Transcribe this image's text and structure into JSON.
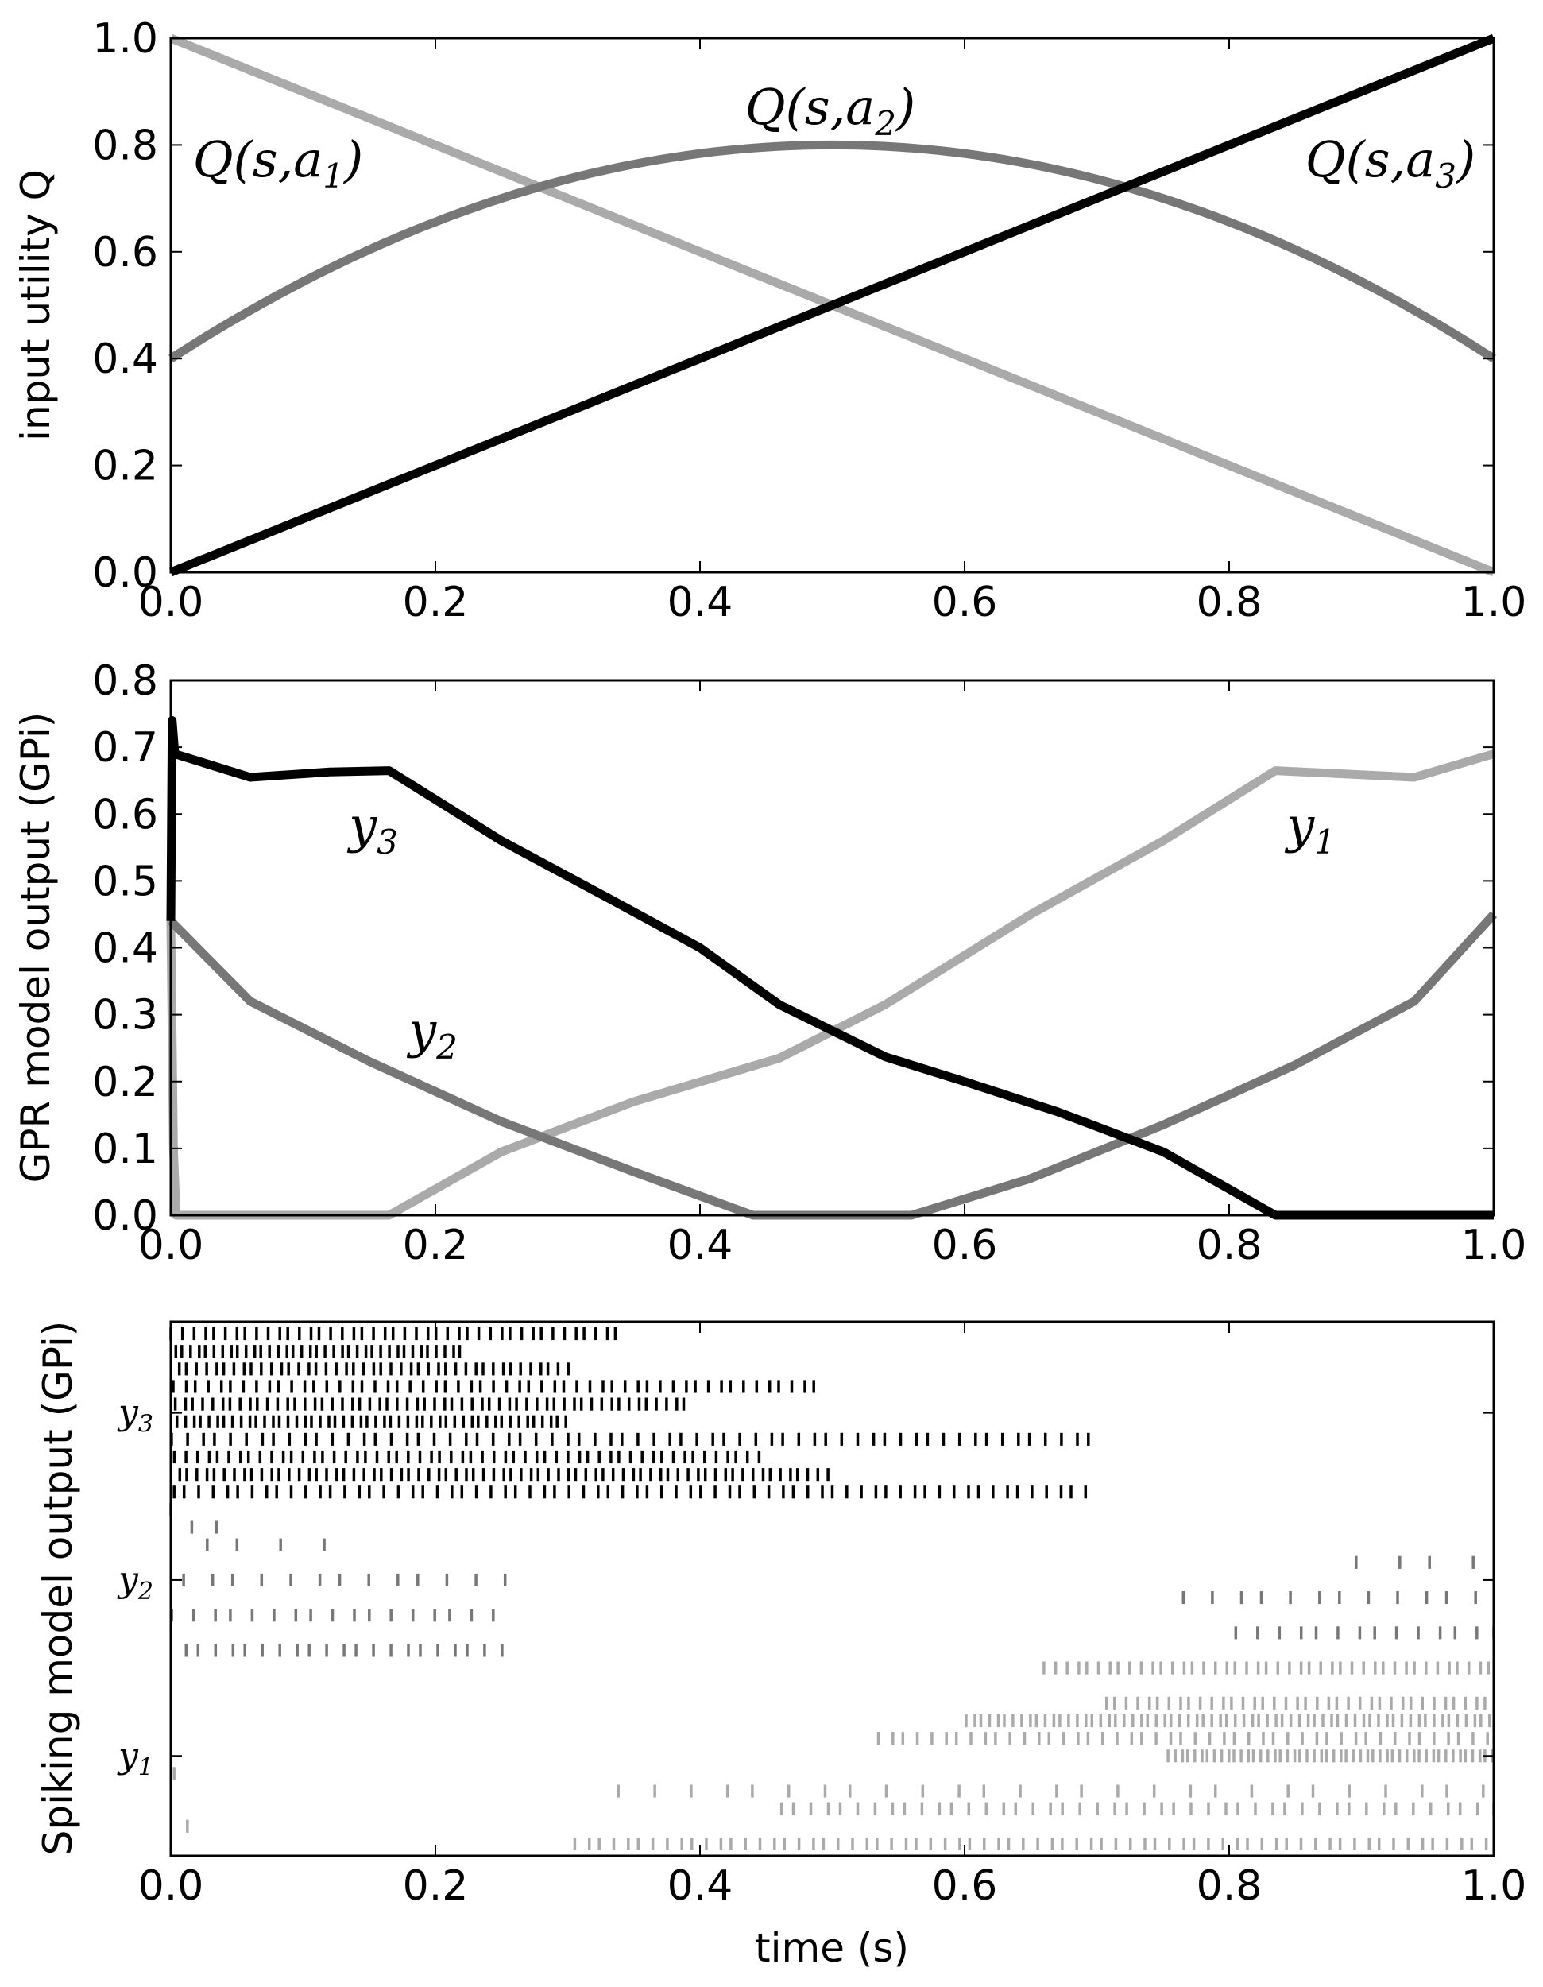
{
  "chart_data": [
    {
      "type": "line",
      "ylabel": "input utility Q",
      "xlim": [
        0,
        1
      ],
      "ylim": [
        0,
        1
      ],
      "xticks": [
        "0.0",
        "0.2",
        "0.4",
        "0.6",
        "0.8",
        "1.0"
      ],
      "yticks": [
        "0.0",
        "0.2",
        "0.4",
        "0.6",
        "0.8",
        "1.0"
      ],
      "series": [
        {
          "name": "Q(s,a1)",
          "label_base": "Q(s,a",
          "label_sub": "1",
          "label_end": ")",
          "color": "#aaaaaa",
          "x": [
            0,
            1
          ],
          "y": [
            1.0,
            0.0
          ]
        },
        {
          "name": "Q(s,a2)",
          "label_base": "Q(s,a",
          "label_sub": "2",
          "label_end": ")",
          "color": "#777777",
          "x": [
            0,
            0.1,
            0.2,
            0.3,
            0.4,
            0.5,
            0.6,
            0.7,
            0.8,
            0.9,
            1.0
          ],
          "y": [
            0.4,
            0.544,
            0.656,
            0.736,
            0.784,
            0.8,
            0.784,
            0.736,
            0.656,
            0.544,
            0.4
          ]
        },
        {
          "name": "Q(s,a3)",
          "label_base": "Q(s,a",
          "label_sub": "3",
          "label_end": ")",
          "color": "#000000",
          "x": [
            0,
            1
          ],
          "y": [
            0.0,
            1.0
          ]
        }
      ]
    },
    {
      "type": "line",
      "ylabel": "GPR model output (GPi)",
      "xlim": [
        0,
        1
      ],
      "ylim": [
        0,
        0.8
      ],
      "xticks": [
        "0.0",
        "0.2",
        "0.4",
        "0.6",
        "0.8",
        "1.0"
      ],
      "yticks": [
        "0.0",
        "0.1",
        "0.2",
        "0.3",
        "0.4",
        "0.5",
        "0.6",
        "0.7",
        "0.8"
      ],
      "series": [
        {
          "name": "y1",
          "label_base": "y",
          "label_sub": "1",
          "color": "#aaaaaa",
          "x": [
            0,
            0.002,
            0.004,
            0.165,
            0.25,
            0.35,
            0.46,
            0.54,
            0.65,
            0.75,
            0.835,
            0.94,
            1.0
          ],
          "y": [
            0.44,
            0.1,
            0.0,
            0.0,
            0.095,
            0.17,
            0.235,
            0.315,
            0.45,
            0.56,
            0.665,
            0.655,
            0.69
          ]
        },
        {
          "name": "y2",
          "label_base": "y",
          "label_sub": "2",
          "color": "#777777",
          "x": [
            0,
            0.06,
            0.15,
            0.25,
            0.35,
            0.44,
            0.56,
            0.65,
            0.75,
            0.85,
            0.94,
            1.0
          ],
          "y": [
            0.44,
            0.32,
            0.23,
            0.14,
            0.065,
            0.0,
            0.0,
            0.055,
            0.135,
            0.225,
            0.32,
            0.45
          ]
        },
        {
          "name": "y3",
          "label_base": "y",
          "label_sub": "3",
          "color": "#000000",
          "x": [
            0,
            0.001,
            0.003,
            0.06,
            0.12,
            0.165,
            0.25,
            0.33,
            0.4,
            0.46,
            0.54,
            0.6,
            0.67,
            0.75,
            0.835,
            1.0
          ],
          "y": [
            0.44,
            0.74,
            0.69,
            0.655,
            0.663,
            0.665,
            0.56,
            0.475,
            0.4,
            0.315,
            0.237,
            0.2,
            0.155,
            0.095,
            0.0,
            0.0
          ]
        }
      ]
    },
    {
      "type": "scatter",
      "subtype": "raster",
      "xlabel": "time (s)",
      "ylabel": "Spiking model output (GPi)",
      "xlim": [
        0,
        1
      ],
      "xticks": [
        "0.0",
        "0.2",
        "0.4",
        "0.6",
        "0.8",
        "1.0"
      ],
      "channel_labels": [
        {
          "base": "y",
          "sub": "3"
        },
        {
          "base": "y",
          "sub": "2"
        },
        {
          "base": "y",
          "sub": "1"
        }
      ],
      "channels": [
        {
          "name": "y3",
          "color": "#000000",
          "rows": [
            {
              "start": 0.0,
              "isi": 0.008,
              "end": 0.34
            },
            {
              "start": 0.0,
              "isi": 0.006,
              "end": 0.22
            },
            {
              "start": 0.0,
              "isi": 0.007,
              "end": 0.3
            },
            {
              "start": 0.0,
              "isi": 0.009,
              "end": 0.49
            },
            {
              "start": 0.0,
              "isi": 0.007,
              "end": 0.39
            },
            {
              "start": 0.0,
              "isi": 0.006,
              "end": 0.3
            },
            {
              "start": 0.0,
              "isi": 0.011,
              "end": 0.7
            },
            {
              "start": 0.0,
              "isi": 0.008,
              "end": 0.45
            },
            {
              "start": 0.0,
              "isi": 0.007,
              "end": 0.5
            },
            {
              "start": 0.0,
              "isi": 0.01,
              "end": 0.69
            }
          ]
        },
        {
          "name": "y2",
          "color": "#777777",
          "rows": [
            {
              "start": 0.0,
              "isi": 0.03,
              "end": 0.02
            },
            {
              "start": 0.0,
              "isi": 0.025,
              "end": 0.04
            },
            {
              "start": 0.0,
              "isi": 0.03,
              "end": 0.13
            },
            {
              "start": 0.89,
              "isi": 0.03,
              "end": 1.0
            },
            {
              "start": 0.0,
              "isi": 0.02,
              "end": 0.25
            },
            {
              "start": 0.75,
              "isi": 0.02,
              "end": 1.0
            },
            {
              "start": 0.0,
              "isi": 0.015,
              "end": 0.25
            },
            {
              "start": 0.8,
              "isi": 0.015,
              "end": 1.0
            },
            {
              "start": 0.0,
              "isi": 0.012,
              "end": 0.25
            }
          ]
        },
        {
          "name": "y1",
          "color": "#aaaaaa",
          "rows": [
            {
              "start": 0.66,
              "isi": 0.008,
              "end": 1.0
            },
            {
              "start": 0.0,
              "isi": 0.05,
              "end": 0.01
            },
            {
              "start": 0.7,
              "isi": 0.008,
              "end": 1.0
            },
            {
              "start": 0.6,
              "isi": 0.006,
              "end": 1.0
            },
            {
              "start": 0.53,
              "isi": 0.01,
              "end": 1.0
            },
            {
              "start": 0.75,
              "isi": 0.005,
              "end": 1.0
            },
            {
              "start": 0.0,
              "isi": 0.05,
              "end": 0.01
            },
            {
              "start": 0.33,
              "isi": 0.025,
              "end": 1.0
            },
            {
              "start": 0.45,
              "isi": 0.012,
              "end": 1.0
            },
            {
              "start": 0.0,
              "isi": 0.05,
              "end": 0.01
            },
            {
              "start": 0.3,
              "isi": 0.01,
              "end": 1.0
            }
          ]
        }
      ]
    }
  ]
}
